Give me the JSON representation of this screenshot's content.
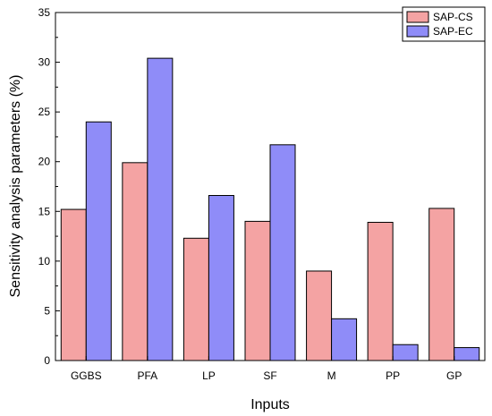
{
  "chart_data": {
    "type": "bar",
    "xlabel": "Inputs",
    "ylabel": "Sensitivity analysis parameters (%)",
    "categories": [
      "GGBS",
      "PFA",
      "LP",
      "SF",
      "M",
      "PP",
      "GP"
    ],
    "ylim": [
      0,
      35
    ],
    "yticks": [
      0,
      5,
      10,
      15,
      20,
      25,
      30,
      35
    ],
    "grid": false,
    "legend_position": "top-right",
    "series": [
      {
        "name": "SAP-CS",
        "color": "#f4a3a3",
        "values": [
          15.2,
          19.9,
          12.3,
          14.0,
          9.0,
          13.9,
          15.3
        ]
      },
      {
        "name": "SAP-EC",
        "color": "#8f8cf8",
        "values": [
          24.0,
          30.4,
          16.6,
          21.7,
          4.2,
          1.6,
          1.3
        ]
      }
    ]
  }
}
